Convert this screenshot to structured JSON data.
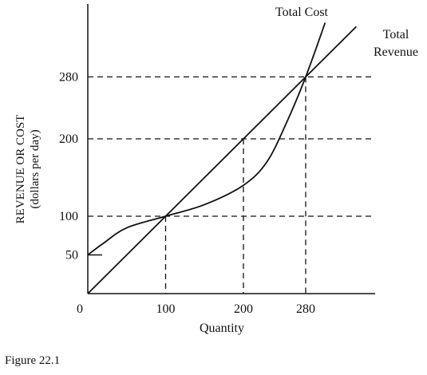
{
  "figure_caption": "Figure 22.1",
  "chart_data": {
    "type": "line",
    "xlabel": "Quantity",
    "ylabel_line1": "REVENUE OR COST",
    "ylabel_line2": "(dollars per day)",
    "x_ticks": [
      0,
      100,
      200,
      280
    ],
    "x_tick_labels": [
      "0",
      "100",
      "200",
      "280"
    ],
    "y_ticks": [
      50,
      100,
      200,
      280
    ],
    "y_tick_labels": [
      "50",
      "100",
      "200",
      "280"
    ],
    "xlim": [
      0,
      360
    ],
    "ylim": [
      0,
      380
    ],
    "grid": false,
    "reference_lines": [
      {
        "y": 100,
        "x_end": 100
      },
      {
        "y": 200,
        "x_end": 200
      },
      {
        "y": 280,
        "x_end": 280
      }
    ],
    "series": [
      {
        "name": "Total Cost",
        "label_line1": "Total Cost",
        "x": [
          0,
          20,
          50,
          100,
          150,
          200,
          230,
          255,
          280,
          305
        ],
        "y": [
          50,
          65,
          85,
          100,
          115,
          140,
          170,
          220,
          280,
          350
        ]
      },
      {
        "name": "Total Revenue",
        "label_line1": "Total",
        "label_line2": "Revenue",
        "x": [
          0,
          345
        ],
        "y": [
          0,
          345
        ]
      }
    ]
  }
}
